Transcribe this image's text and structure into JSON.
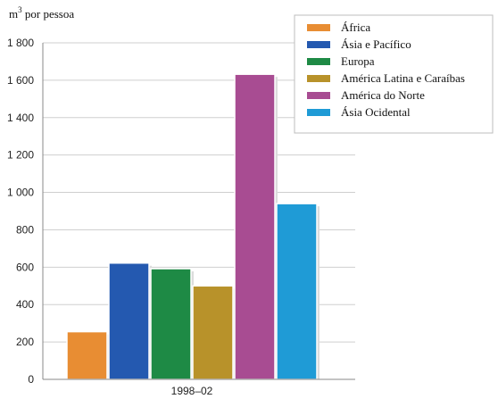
{
  "chart_data": {
    "type": "bar",
    "ylabel_base": "m",
    "ylabel_sup": "3",
    "ylabel_rest": " por pessoa",
    "xlabel": "",
    "categories": [
      "1998–02"
    ],
    "ylim": [
      0,
      1800
    ],
    "yticks": [
      0,
      200,
      400,
      600,
      800,
      1000,
      1200,
      1400,
      1600,
      1800
    ],
    "ytick_labels": [
      "0",
      "200",
      "400",
      "600",
      "800",
      "1 000",
      "1 200",
      "1 400",
      "1 600",
      "1 800"
    ],
    "grid": true,
    "legend_position": "top-right",
    "series": [
      {
        "name": "África",
        "color": "#E88D33",
        "values": [
          255
        ]
      },
      {
        "name": "Ásia e Pacífico",
        "color": "#2459B0",
        "values": [
          622
        ]
      },
      {
        "name": "Europa",
        "color": "#1E8A45",
        "values": [
          592
        ]
      },
      {
        "name": "América Latina e Caraíbas",
        "color": "#B8922A",
        "values": [
          500
        ]
      },
      {
        "name": "América do Norte",
        "color": "#A84C92",
        "values": [
          1632
        ]
      },
      {
        "name": "Ásia Ocidental",
        "color": "#1F9BD6",
        "values": [
          940
        ]
      }
    ]
  }
}
